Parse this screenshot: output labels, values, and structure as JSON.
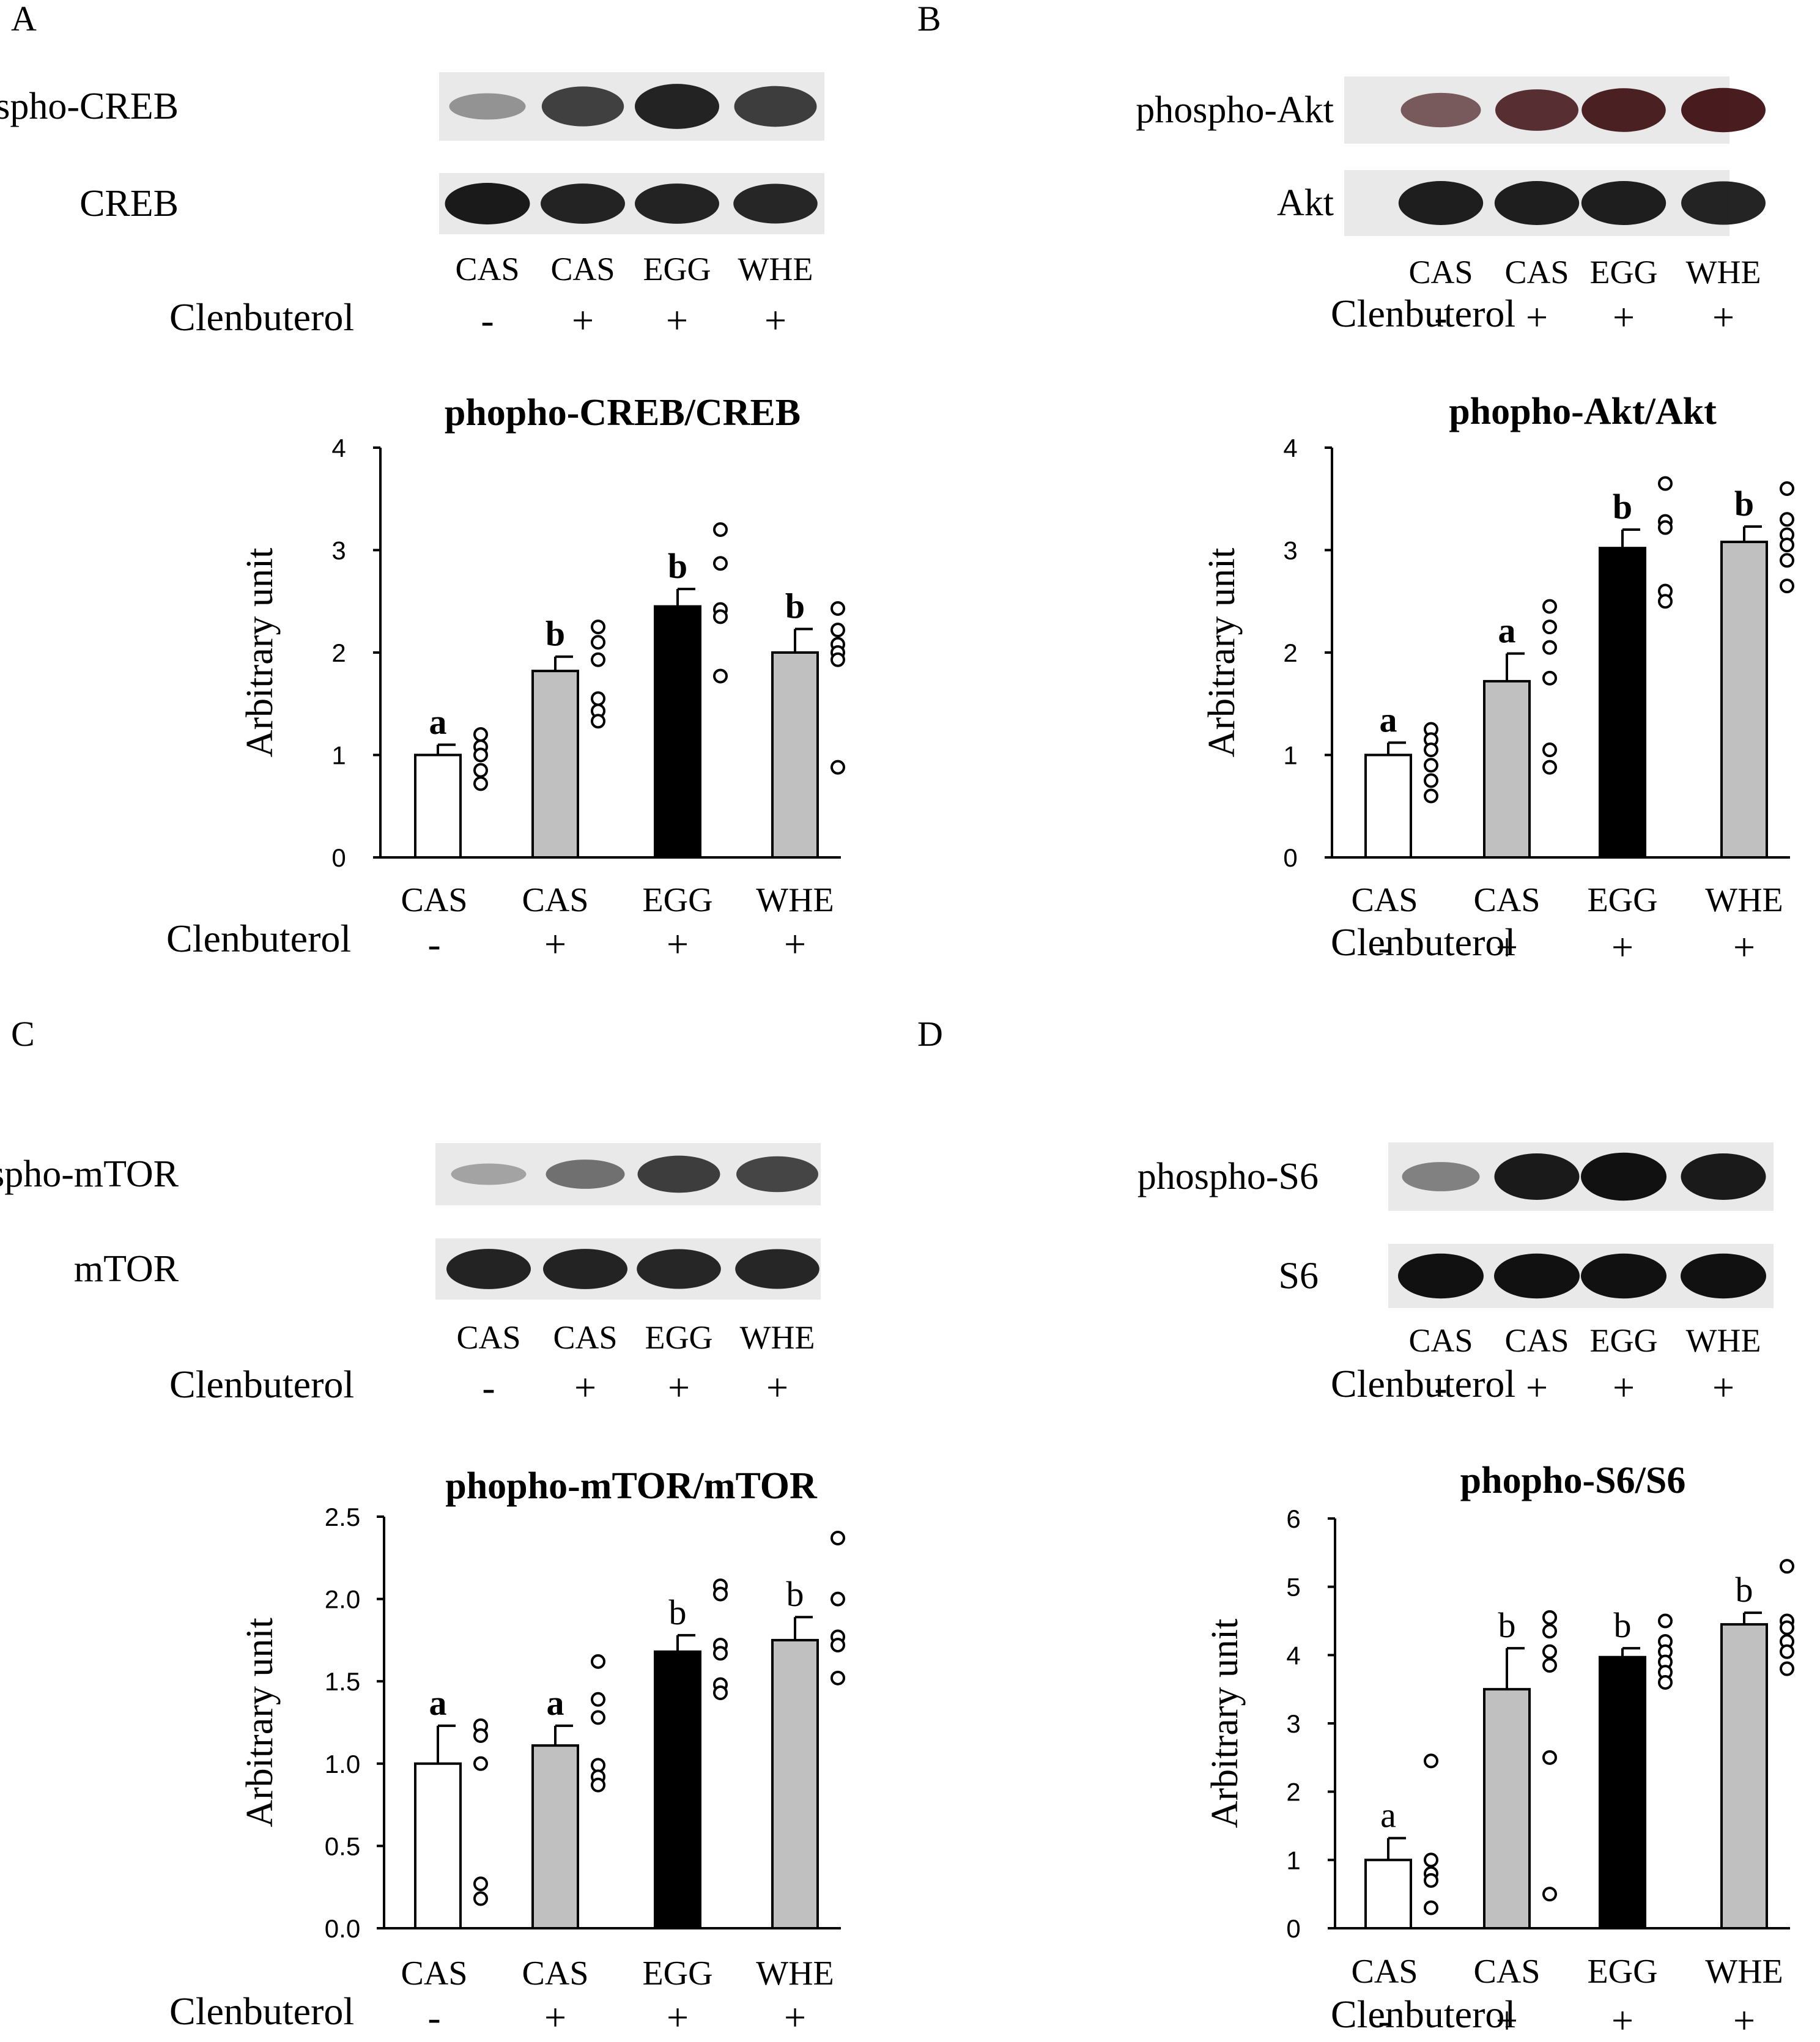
{
  "figure": {
    "panels": [
      {
        "letter": "A",
        "blots": [
          {
            "label": "phospho-CREB",
            "intensity": [
              0.25,
              0.72,
              0.9,
              0.75
            ]
          },
          {
            "label": "CREB",
            "intensity": [
              0.95,
              0.9,
              0.9,
              0.88
            ]
          }
        ],
        "lanes": [
          "CAS",
          "CAS",
          "EGG",
          "WHE"
        ],
        "treatment_label": "Clenbuterol",
        "treatment_signs": [
          "-",
          "+",
          "+",
          "+"
        ]
      },
      {
        "letter": "B",
        "blots": [
          {
            "label": "phospho-Akt",
            "intensity": [
              0.55,
              0.8,
              0.88,
              0.9
            ],
            "tint": "#3a0a0d"
          },
          {
            "label": "Akt",
            "intensity": [
              0.92,
              0.92,
              0.92,
              0.9
            ]
          }
        ],
        "lanes": [
          "CAS",
          "CAS",
          "EGG",
          "WHE"
        ],
        "treatment_label": "Clenbuterol",
        "treatment_signs": [
          "-",
          "+",
          "+",
          "+"
        ]
      },
      {
        "letter": "C",
        "blots": [
          {
            "label": "phospho-mTOR",
            "intensity": [
              0.15,
              0.45,
              0.75,
              0.7
            ]
          },
          {
            "label": "mTOR",
            "intensity": [
              0.9,
              0.9,
              0.88,
              0.88
            ]
          }
        ],
        "lanes": [
          "CAS",
          "CAS",
          "EGG",
          "WHE"
        ],
        "treatment_label": "Clenbuterol",
        "treatment_signs": [
          "-",
          "+",
          "+",
          "+"
        ]
      },
      {
        "letter": "D",
        "blots": [
          {
            "label": "phospho-S6",
            "intensity": [
              0.35,
              0.95,
              1.0,
              0.95
            ]
          },
          {
            "label": "S6",
            "intensity": [
              1.0,
              1.0,
              1.0,
              1.0
            ]
          }
        ],
        "lanes": [
          "CAS",
          "CAS",
          "EGG",
          "WHE"
        ],
        "treatment_label": "Clenbuterol",
        "treatment_signs": [
          "-",
          "+",
          "+",
          "+"
        ]
      }
    ]
  },
  "chart_data": [
    {
      "type": "bar",
      "title": "phopho-CREB/CREB",
      "ylabel": "Arbitrary unit",
      "ylim": [
        0,
        4
      ],
      "yticks": [
        "0",
        "1",
        "2",
        "3",
        "4"
      ],
      "ytick_values": [
        0,
        1,
        2,
        3,
        4
      ],
      "categories": [
        "CAS",
        "CAS",
        "EGG",
        "WHE"
      ],
      "treatment_label": "Clenbuterol",
      "treatment_signs": [
        "-",
        "+",
        "+",
        "+"
      ],
      "values": [
        1.0,
        1.82,
        2.45,
        2.0
      ],
      "errors": [
        0.1,
        0.14,
        0.17,
        0.23
      ],
      "fills": [
        "#ffffff",
        "#c0c0c0",
        "#000000",
        "#c0c0c0"
      ],
      "letters": [
        "a",
        "b",
        "b",
        "b"
      ],
      "letters_bold": true,
      "points": [
        [
          1.2,
          1.08,
          1.0,
          0.85,
          0.72
        ],
        [
          2.25,
          2.1,
          1.93,
          1.55,
          1.43,
          1.33
        ],
        [
          3.2,
          2.87,
          2.42,
          2.35,
          1.77
        ],
        [
          2.43,
          2.22,
          2.08,
          2.0,
          1.93,
          0.88
        ]
      ]
    },
    {
      "type": "bar",
      "title": "phopho-Akt/Akt",
      "ylabel": "Arbitrary unit",
      "ylim": [
        0,
        4
      ],
      "yticks": [
        "0",
        "1",
        "2",
        "3",
        "4"
      ],
      "ytick_values": [
        0,
        1,
        2,
        3,
        4
      ],
      "categories": [
        "CAS",
        "CAS",
        "EGG",
        "WHE"
      ],
      "treatment_label": "Clenbuterol",
      "treatment_signs": [
        "-",
        "+",
        "+",
        "+"
      ],
      "values": [
        1.0,
        1.72,
        3.02,
        3.08
      ],
      "errors": [
        0.12,
        0.27,
        0.18,
        0.15
      ],
      "fills": [
        "#ffffff",
        "#c0c0c0",
        "#000000",
        "#c0c0c0"
      ],
      "letters": [
        "a",
        "a",
        "b",
        "b"
      ],
      "letters_bold": true,
      "points": [
        [
          1.25,
          1.15,
          1.05,
          0.9,
          0.75,
          0.6
        ],
        [
          2.45,
          2.25,
          2.05,
          1.75,
          1.05,
          0.88
        ],
        [
          3.65,
          3.28,
          3.22,
          2.6,
          2.5
        ],
        [
          3.6,
          3.3,
          3.15,
          3.05,
          2.9,
          2.65
        ]
      ]
    },
    {
      "type": "bar",
      "title": "phopho-mTOR/mTOR",
      "ylabel": "Arbitrary unit",
      "ylim": [
        0,
        2.5
      ],
      "yticks": [
        "0.0",
        "0.5",
        "1.0",
        "1.5",
        "2.0",
        "2.5"
      ],
      "ytick_values": [
        0,
        0.5,
        1.0,
        1.5,
        2.0,
        2.5
      ],
      "categories": [
        "CAS",
        "CAS",
        "EGG",
        "WHE"
      ],
      "treatment_label": "Clenbuterol",
      "treatment_signs": [
        "-",
        "+",
        "+",
        "+"
      ],
      "values": [
        1.0,
        1.11,
        1.68,
        1.75
      ],
      "errors": [
        0.23,
        0.12,
        0.1,
        0.14
      ],
      "fills": [
        "#ffffff",
        "#c0c0c0",
        "#000000",
        "#c0c0c0"
      ],
      "letters": [
        "a",
        "a",
        "b",
        "b"
      ],
      "letters_bold": [
        true,
        true,
        false,
        false
      ],
      "points": [
        [
          1.23,
          1.17,
          1.0,
          0.27,
          0.18
        ],
        [
          1.62,
          1.39,
          1.28,
          0.99,
          0.92,
          0.87
        ],
        [
          2.08,
          2.03,
          1.72,
          1.67,
          1.48,
          1.43
        ],
        [
          2.37,
          2.0,
          1.77,
          1.72,
          1.52
        ]
      ]
    },
    {
      "type": "bar",
      "title": "phopho-S6/S6",
      "ylabel": "Arbitrary unit",
      "ylim": [
        0,
        6
      ],
      "yticks": [
        "0",
        "1",
        "2",
        "3",
        "4",
        "5",
        "6"
      ],
      "ytick_values": [
        0,
        1,
        2,
        3,
        4,
        5,
        6
      ],
      "categories": [
        "CAS",
        "CAS",
        "EGG",
        "WHE"
      ],
      "treatment_label": "Clenbuterol",
      "treatment_signs": [
        "-",
        "+",
        "+",
        "+"
      ],
      "values": [
        1.0,
        3.5,
        3.97,
        4.45
      ],
      "errors": [
        0.32,
        0.6,
        0.13,
        0.17
      ],
      "fills": [
        "#ffffff",
        "#c0c0c0",
        "#000000",
        "#c0c0c0"
      ],
      "letters": [
        "a",
        "b",
        "b",
        "b"
      ],
      "letters_bold": false,
      "points": [
        [
          2.45,
          1.0,
          0.8,
          0.7,
          0.3
        ],
        [
          4.55,
          4.35,
          4.05,
          3.85,
          2.5,
          0.5
        ],
        [
          4.5,
          4.2,
          4.05,
          3.9,
          3.75,
          3.6
        ],
        [
          5.3,
          4.5,
          4.4,
          4.2,
          4.05,
          3.8
        ]
      ]
    }
  ]
}
